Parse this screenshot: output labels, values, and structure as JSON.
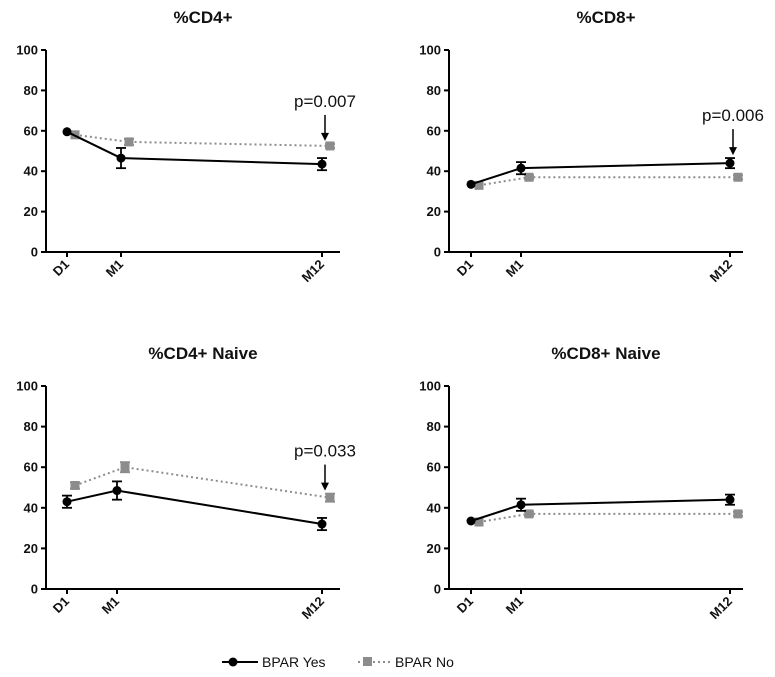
{
  "legend": {
    "yes_label": "BPAR Yes",
    "no_label": "BPAR No",
    "yes_color": "#000000",
    "no_color": "#8c8c8c"
  },
  "chart_data": [
    {
      "type": "line",
      "title": "%CD4+",
      "categories": [
        "D1",
        "M1",
        "M12"
      ],
      "ylim": [
        0,
        100
      ],
      "yticks": [
        0,
        20,
        40,
        60,
        80,
        100
      ],
      "series": [
        {
          "name": "BPAR Yes",
          "values": [
            59.5,
            46.5,
            43.5
          ],
          "error": [
            0,
            5,
            3
          ]
        },
        {
          "name": "BPAR No",
          "values": [
            58,
            54.5,
            52.5
          ],
          "error": [
            0,
            1.5,
            1
          ]
        }
      ],
      "annotation": {
        "text": "p=0.007",
        "category": "M12"
      }
    },
    {
      "type": "line",
      "title": "%CD8+",
      "categories": [
        "D1",
        "M1",
        "M12"
      ],
      "ylim": [
        0,
        100
      ],
      "yticks": [
        0,
        20,
        40,
        60,
        80,
        100
      ],
      "series": [
        {
          "name": "BPAR Yes",
          "values": [
            33.5,
            41.5,
            44
          ],
          "error": [
            0,
            3,
            2.5
          ]
        },
        {
          "name": "BPAR No",
          "values": [
            33,
            37,
            37
          ],
          "error": [
            0,
            1,
            1
          ]
        }
      ],
      "annotation": {
        "text": "p=0.006",
        "category": "M12"
      }
    },
    {
      "type": "line",
      "title": "%CD4+ Naive",
      "categories": [
        "D1",
        "M1",
        "M12"
      ],
      "ylim": [
        0,
        100
      ],
      "yticks": [
        0,
        20,
        40,
        60,
        80,
        100
      ],
      "series": [
        {
          "name": "BPAR Yes",
          "values": [
            43,
            48.5,
            32
          ],
          "error": [
            3,
            4.5,
            3
          ]
        },
        {
          "name": "BPAR No",
          "values": [
            51,
            60,
            45
          ],
          "error": [
            1.5,
            2.5,
            2
          ]
        }
      ],
      "annotation": {
        "text": "p=0.033",
        "category": "M12"
      }
    },
    {
      "type": "line",
      "title": "%CD8+ Naive",
      "categories": [
        "D1",
        "M1",
        "M12"
      ],
      "ylim": [
        0,
        100
      ],
      "yticks": [
        0,
        20,
        40,
        60,
        80,
        100
      ],
      "series": [
        {
          "name": "BPAR Yes",
          "values": [
            33.5,
            41.5,
            44
          ],
          "error": [
            0,
            3,
            2.5
          ]
        },
        {
          "name": "BPAR No",
          "values": [
            33,
            37,
            37
          ],
          "error": [
            0,
            1,
            1
          ]
        }
      ],
      "annotation": null
    }
  ]
}
